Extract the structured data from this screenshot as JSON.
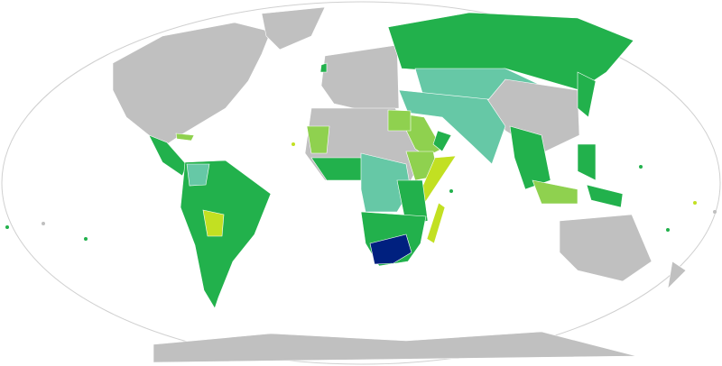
{
  "map": {
    "projection": "Robinson",
    "colors": {
      "grey": "#c0c0c0",
      "green": "#22b14c",
      "teal": "#66c8a6",
      "lightgreen": "#8fd14f",
      "yellowgreen": "#c2e022",
      "navy": "#00207f",
      "border": "#d0d0d0"
    }
  }
}
